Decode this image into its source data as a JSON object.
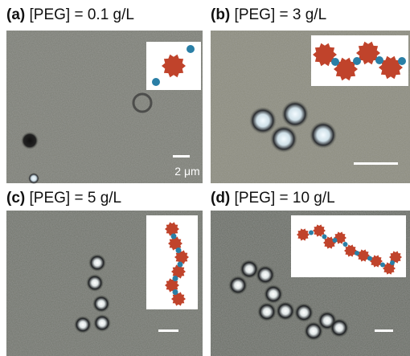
{
  "panels": [
    {
      "label": "(a)",
      "condition": "[PEG] = 0.1 g/L",
      "scale_bar": "2 μm"
    },
    {
      "label": "(b)",
      "condition": "[PEG] = 3 g/L"
    },
    {
      "label": "(c)",
      "condition": "[PEG] = 5 g/L"
    },
    {
      "label": "(d)",
      "condition": "[PEG] = 10 g/L"
    }
  ]
}
